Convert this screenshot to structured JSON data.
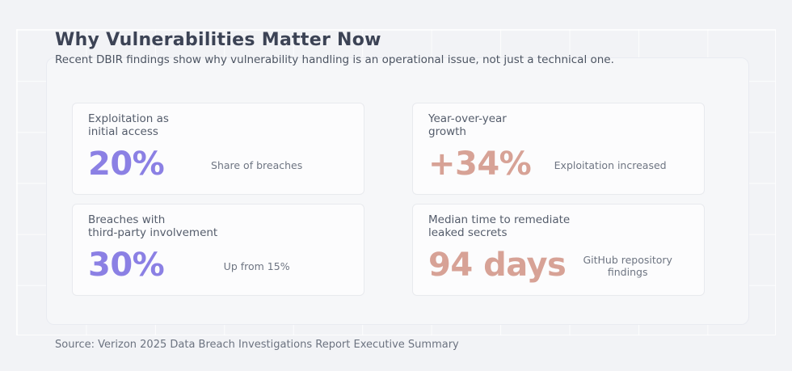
{
  "header": {
    "title": "Why Vulnerabilities Matter Now",
    "subtitle": "Recent DBIR findings show why vulnerability handling is an operational issue, not just a technical one."
  },
  "cards": [
    {
      "label": "Exploitation as\ninitial access",
      "value": "20%",
      "description": "Share of breaches",
      "accent": "#8b80e4"
    },
    {
      "label": "Year-over-year\ngrowth",
      "value": "+34%",
      "description": "Exploitation increased",
      "accent": "#d7a296"
    },
    {
      "label": "Breaches with\nthird-party involvement",
      "value": "30%",
      "description": "Up from 15%",
      "accent": "#8b80e4"
    },
    {
      "label": "Median time to remediate\nleaked secrets",
      "value": "94 days",
      "description": "GitHub repository findings",
      "accent": "#d7a296"
    }
  ],
  "footer": {
    "source": "Source: Verizon 2025 Data Breach Investigations Report Executive Summary"
  },
  "colors": {
    "accent_purple": "#8b80e4",
    "accent_salmon": "#d7a296",
    "background": "#f2f3f6",
    "panel": "#f6f7f9",
    "card": "#fcfcfd",
    "title_text": "#3c4355"
  }
}
